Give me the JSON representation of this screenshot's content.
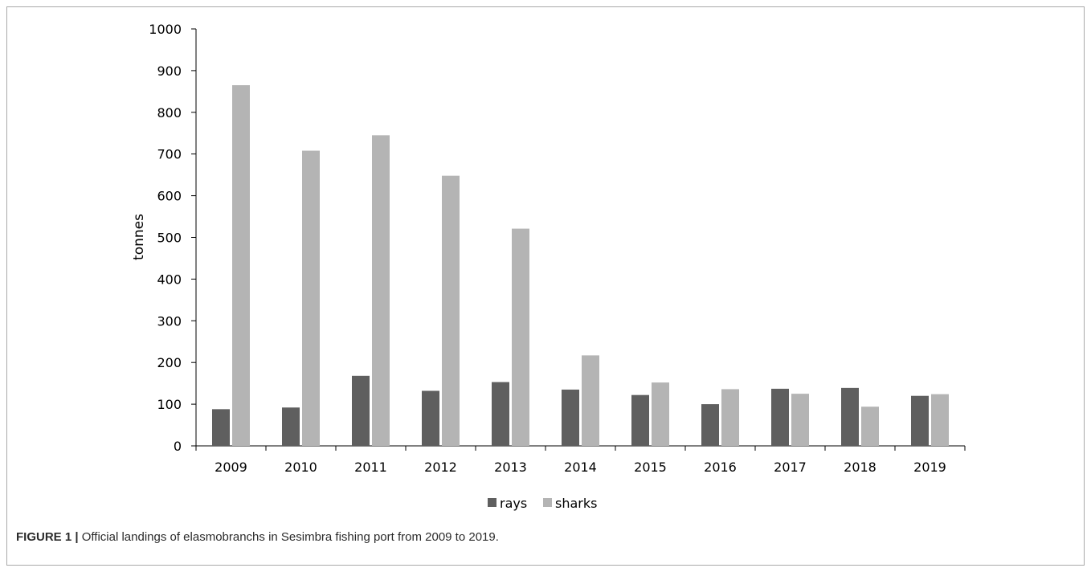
{
  "figure": {
    "label": "FIGURE 1 |",
    "text": "Official landings of elasmobranchs in Sesimbra fishing port from 2009 to 2019."
  },
  "chart_data": {
    "type": "bar",
    "title": "",
    "xlabel": "",
    "ylabel": "tonnes",
    "ylim": [
      0,
      1000
    ],
    "yticks": [
      0,
      100,
      200,
      300,
      400,
      500,
      600,
      700,
      800,
      900,
      1000
    ],
    "grid": false,
    "legend_position": "bottom",
    "categories": [
      "2009",
      "2010",
      "2011",
      "2012",
      "2013",
      "2014",
      "2015",
      "2016",
      "2017",
      "2018",
      "2019"
    ],
    "series": [
      {
        "name": "rays",
        "color": "#5f5f5f",
        "values": [
          88,
          92,
          168,
          132,
          153,
          135,
          122,
          100,
          137,
          139,
          120
        ]
      },
      {
        "name": "sharks",
        "color": "#b4b4b4",
        "values": [
          865,
          708,
          745,
          648,
          521,
          217,
          152,
          136,
          125,
          94,
          124
        ]
      }
    ]
  }
}
